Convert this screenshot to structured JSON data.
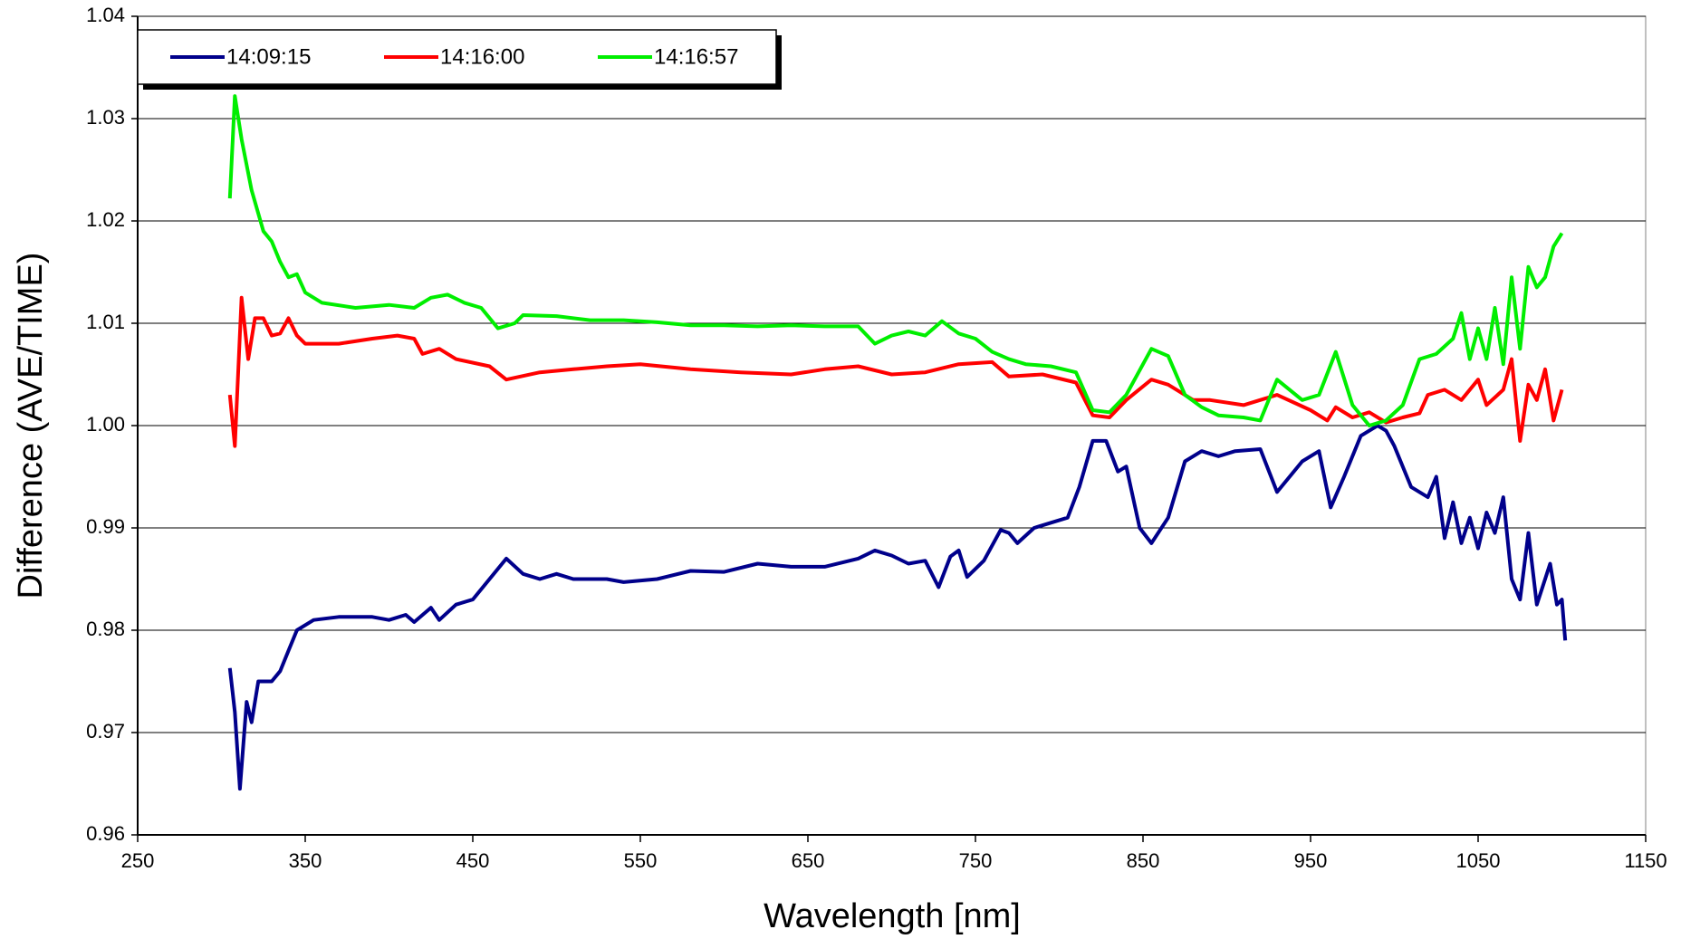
{
  "chart_data": {
    "type": "line",
    "x_label": "Wavelength [nm]",
    "y_label": "Difference (AVE/TIME)",
    "xlim": [
      250,
      1150
    ],
    "xticks": [
      250,
      350,
      450,
      550,
      650,
      750,
      850,
      950,
      1050,
      1150
    ],
    "ylim": [
      0.96,
      1.04
    ],
    "yticks": [
      0.96,
      0.97,
      0.98,
      0.99,
      {
        "value": 1,
        "label": "1.00"
      },
      1.01,
      1.02,
      1.03,
      1.04
    ],
    "grid": true,
    "legend": "top-left",
    "series": [
      {
        "name": "14:09:15",
        "color": "#00008b",
        "x": [
          305,
          308,
          311,
          315,
          318,
          322,
          330,
          335,
          340,
          345,
          355,
          370,
          390,
          400,
          410,
          415,
          425,
          430,
          440,
          450,
          460,
          470,
          480,
          490,
          500,
          510,
          530,
          540,
          560,
          580,
          600,
          620,
          640,
          660,
          680,
          690,
          700,
          710,
          720,
          728,
          735,
          740,
          745,
          755,
          765,
          770,
          775,
          785,
          795,
          805,
          812,
          820,
          828,
          835,
          840,
          848,
          855,
          865,
          875,
          885,
          895,
          905,
          920,
          930,
          945,
          955,
          962,
          970,
          980,
          990,
          995,
          1000,
          1010,
          1020,
          1025,
          1030,
          1035,
          1040,
          1045,
          1050,
          1055,
          1060,
          1065,
          1070,
          1075,
          1080,
          1085,
          1090,
          1093,
          1097,
          1100,
          1102
        ],
        "values": [
          0.9763,
          0.972,
          0.9645,
          0.973,
          0.971,
          0.975,
          0.975,
          0.976,
          0.978,
          0.98,
          0.981,
          0.9813,
          0.9813,
          0.981,
          0.9815,
          0.9808,
          0.9822,
          0.981,
          0.9825,
          0.983,
          0.985,
          0.987,
          0.9855,
          0.985,
          0.9855,
          0.985,
          0.985,
          0.9847,
          0.985,
          0.9858,
          0.9857,
          0.9865,
          0.9862,
          0.9862,
          0.987,
          0.9878,
          0.9873,
          0.9865,
          0.9868,
          0.9842,
          0.9872,
          0.9878,
          0.9852,
          0.9868,
          0.9898,
          0.9895,
          0.9885,
          0.99,
          0.9905,
          0.991,
          0.994,
          0.9985,
          0.9985,
          0.9955,
          0.996,
          0.99,
          0.9885,
          0.991,
          0.9965,
          0.9975,
          0.997,
          0.9975,
          0.9977,
          0.9935,
          0.9965,
          0.9975,
          0.992,
          0.995,
          0.999,
          1.0,
          0.9995,
          0.998,
          0.994,
          0.993,
          0.995,
          0.989,
          0.9925,
          0.9885,
          0.991,
          0.988,
          0.9915,
          0.9895,
          0.993,
          0.985,
          0.983,
          0.9895,
          0.9825,
          0.985,
          0.9865,
          0.9825,
          0.983,
          0.979
        ]
      },
      {
        "name": "14:16:00",
        "color": "#ff0000",
        "x": [
          305,
          308,
          312,
          316,
          320,
          325,
          330,
          335,
          340,
          345,
          350,
          370,
          390,
          405,
          415,
          420,
          430,
          440,
          460,
          470,
          490,
          510,
          530,
          550,
          580,
          610,
          640,
          660,
          680,
          700,
          720,
          740,
          760,
          770,
          790,
          810,
          820,
          830,
          840,
          855,
          865,
          880,
          890,
          910,
          930,
          950,
          960,
          965,
          975,
          985,
          995,
          1005,
          1015,
          1020,
          1030,
          1040,
          1050,
          1055,
          1065,
          1070,
          1075,
          1080,
          1085,
          1090,
          1095,
          1100
        ],
        "values": [
          1.003,
          0.998,
          1.0125,
          1.0065,
          1.0105,
          1.0105,
          1.0088,
          1.009,
          1.0105,
          1.0088,
          1.008,
          1.008,
          1.0085,
          1.0088,
          1.0085,
          1.007,
          1.0075,
          1.0065,
          1.0058,
          1.0045,
          1.0052,
          1.0055,
          1.0058,
          1.006,
          1.0055,
          1.0052,
          1.005,
          1.0055,
          1.0058,
          1.005,
          1.0052,
          1.006,
          1.0062,
          1.0048,
          1.005,
          1.0042,
          1.001,
          1.0008,
          1.0025,
          1.0045,
          1.004,
          1.0025,
          1.0025,
          1.002,
          1.003,
          1.0015,
          1.0005,
          1.0018,
          1.0008,
          1.0013,
          1.0003,
          1.0008,
          1.0012,
          1.003,
          1.0035,
          1.0025,
          1.0045,
          1.002,
          1.0035,
          1.0065,
          0.9985,
          1.004,
          1.0025,
          1.0055,
          1.0005,
          1.0035
        ]
      },
      {
        "name": "14:16:57",
        "color": "#00ee00",
        "x": [
          305,
          308,
          312,
          318,
          325,
          330,
          335,
          340,
          345,
          350,
          360,
          380,
          400,
          415,
          425,
          435,
          445,
          455,
          465,
          475,
          480,
          500,
          520,
          540,
          560,
          580,
          600,
          620,
          640,
          660,
          680,
          690,
          700,
          710,
          720,
          730,
          740,
          750,
          760,
          770,
          780,
          795,
          810,
          820,
          830,
          840,
          855,
          865,
          875,
          885,
          895,
          910,
          920,
          930,
          945,
          955,
          965,
          975,
          985,
          995,
          1005,
          1015,
          1025,
          1035,
          1040,
          1045,
          1050,
          1055,
          1060,
          1065,
          1070,
          1075,
          1080,
          1085,
          1090,
          1095,
          1100
        ],
        "values": [
          1.0222,
          1.0322,
          1.028,
          1.023,
          1.019,
          1.018,
          1.016,
          1.0145,
          1.0148,
          1.013,
          1.012,
          1.0115,
          1.0118,
          1.0115,
          1.0125,
          1.0128,
          1.012,
          1.0115,
          1.0095,
          1.01,
          1.0108,
          1.0107,
          1.0103,
          1.0103,
          1.0101,
          1.0098,
          1.0098,
          1.0097,
          1.0098,
          1.0097,
          1.0097,
          1.008,
          1.0088,
          1.0092,
          1.0088,
          1.0102,
          1.009,
          1.0085,
          1.0072,
          1.0065,
          1.006,
          1.0058,
          1.0052,
          1.0015,
          1.0013,
          1.003,
          1.0075,
          1.0068,
          1.003,
          1.0018,
          1.001,
          1.0008,
          1.0005,
          1.0045,
          1.0025,
          1.003,
          1.0072,
          1.002,
          1.0,
          1.0005,
          1.002,
          1.0065,
          1.007,
          1.0085,
          1.011,
          1.0065,
          1.0095,
          1.0065,
          1.0115,
          1.006,
          1.0145,
          1.0075,
          1.0155,
          1.0135,
          1.0145,
          1.0175,
          1.0188
        ]
      }
    ]
  }
}
